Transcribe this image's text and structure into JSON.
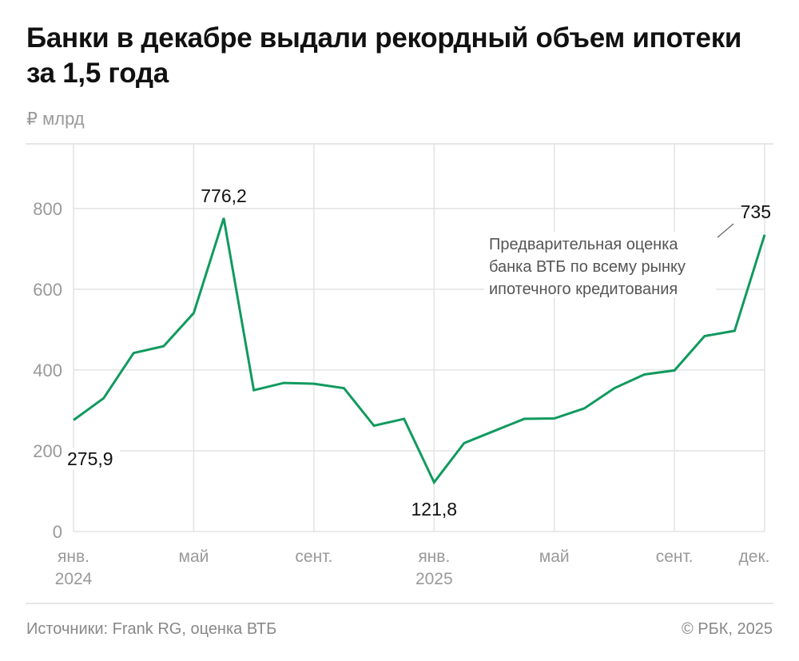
{
  "title": "Банки в декабре выдали рекордный объем ипотеки за 1,5 года",
  "unit": "₽ млрд",
  "footer": {
    "source": "Источники: Frank RG, оценка ВТБ",
    "copyright": "© РБК, 2025"
  },
  "chart_data": {
    "type": "line",
    "title": "Банки в декабре выдали рекордный объем ипотеки за 1,5 года",
    "ylabel": "₽ млрд",
    "ylim": [
      0,
      960
    ],
    "yticks": [
      0,
      200,
      400,
      600,
      800
    ],
    "grid": true,
    "line_color": "#119a5e",
    "x": [
      "2024-01",
      "2024-02",
      "2024-03",
      "2024-04",
      "2024-05",
      "2024-06",
      "2024-07",
      "2024-08",
      "2024-09",
      "2024-10",
      "2024-11",
      "2024-12",
      "2025-01",
      "2025-02",
      "2025-03",
      "2025-04",
      "2025-05",
      "2025-06",
      "2025-07",
      "2025-08",
      "2025-09",
      "2025-10",
      "2025-11",
      "2025-12"
    ],
    "values": [
      275.9,
      330,
      442,
      459,
      541,
      776.2,
      350,
      368,
      366,
      355,
      262,
      279,
      121.8,
      219,
      249,
      279,
      280,
      305,
      355,
      389,
      399,
      484,
      497,
      735
    ],
    "xticks": [
      {
        "index": 0,
        "label": "янв.",
        "sub": "2024"
      },
      {
        "index": 4,
        "label": "май",
        "sub": ""
      },
      {
        "index": 8,
        "label": "сент.",
        "sub": ""
      },
      {
        "index": 12,
        "label": "янв.",
        "sub": "2025"
      },
      {
        "index": 16,
        "label": "май",
        "sub": ""
      },
      {
        "index": 20,
        "label": "сент.",
        "sub": ""
      },
      {
        "index": 23,
        "label": "дек.",
        "sub": ""
      }
    ],
    "data_labels": [
      {
        "index": 0,
        "text": "275,9"
      },
      {
        "index": 5,
        "text": "776,2"
      },
      {
        "index": 12,
        "text": "121,8"
      },
      {
        "index": 23,
        "text": "735"
      }
    ],
    "annotation": {
      "index": 23,
      "lines": [
        "Предварительная оценка",
        "банка ВТБ по всему рынку",
        "ипотечного кредитования"
      ]
    }
  }
}
